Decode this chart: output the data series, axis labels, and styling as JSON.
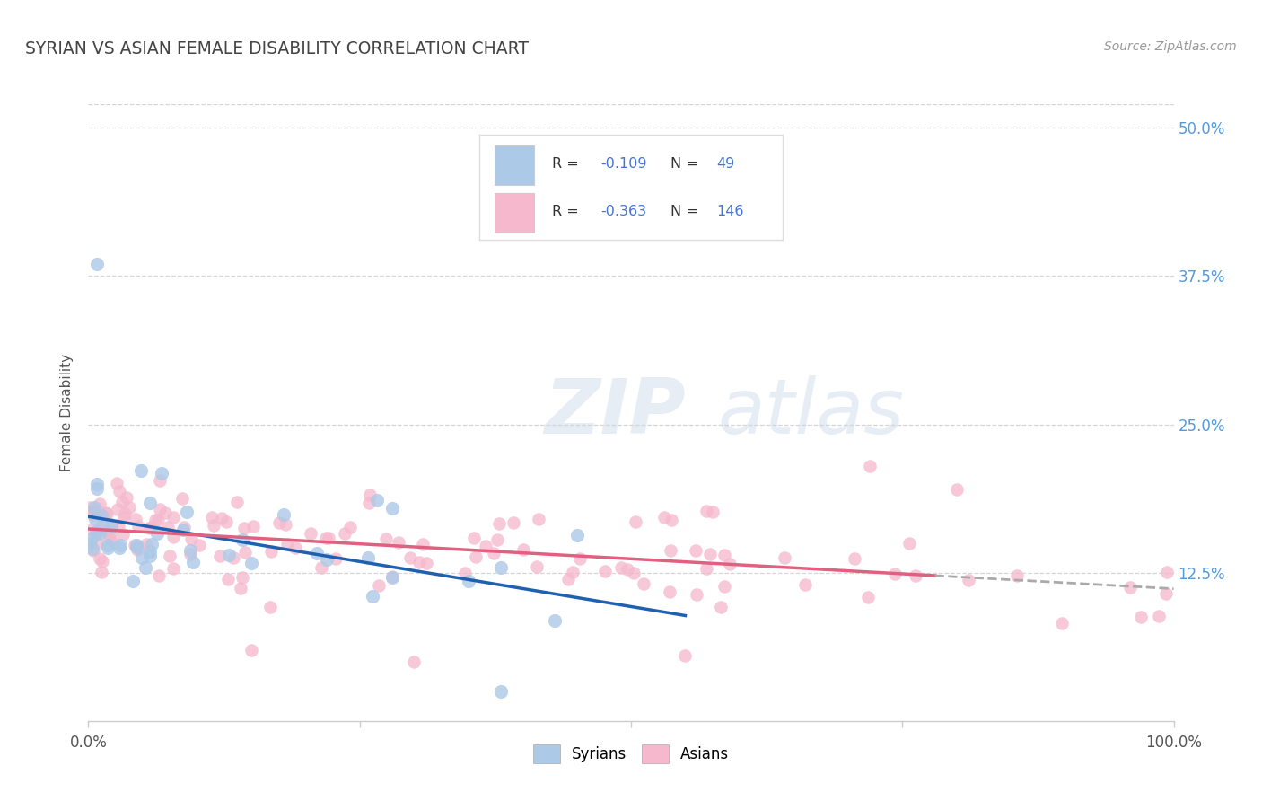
{
  "title": "SYRIAN VS ASIAN FEMALE DISABILITY CORRELATION CHART",
  "source": "Source: ZipAtlas.com",
  "ylabel_label": "Female Disability",
  "right_yticks": [
    "12.5%",
    "25.0%",
    "37.5%",
    "50.0%"
  ],
  "right_ytick_vals": [
    0.125,
    0.25,
    0.375,
    0.5
  ],
  "ylim": [
    0.0,
    0.52
  ],
  "xlim": [
    0.0,
    1.0
  ],
  "legend_entries": [
    {
      "label": "Syrians",
      "R": "-0.109",
      "N": "49",
      "color": "#adc9e8",
      "line_color": "#2060b0"
    },
    {
      "label": "Asians",
      "R": "-0.363",
      "N": "146",
      "color": "#f5b8cc",
      "line_color": "#e06080"
    }
  ],
  "watermark_zip": "ZIP",
  "watermark_atlas": "atlas",
  "bg_color": "#ffffff",
  "grid_color": "#cccccc",
  "title_color": "#444444",
  "source_color": "#999999",
  "tick_color": "#555555",
  "right_tick_color": "#5599dd",
  "legend_text_dark": "#333333",
  "legend_text_blue": "#4477cc"
}
